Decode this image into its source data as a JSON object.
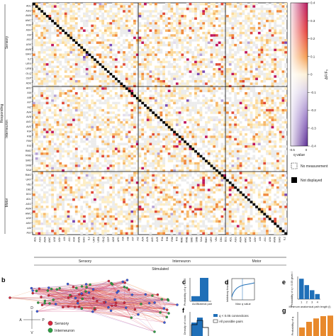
{
  "panels": {
    "a": {
      "type": "heatmap",
      "x_axis_title": "Stimulated",
      "y_axis_title": "Responding",
      "groups": [
        "Sensory",
        "Interneuron",
        "Motor"
      ],
      "row_labels_visible_sample": [
        "ADL",
        "ASG",
        "AWA",
        "AWC",
        "ASE",
        "ASH",
        "ASI",
        "ASJ",
        "ASK",
        "AWB",
        "BAG",
        "IL2",
        "URX",
        "URB",
        "OLQ",
        "CEP",
        "ADE",
        "AFD",
        "AIA",
        "AIB",
        "AIY",
        "AIZ",
        "AVA",
        "AVB",
        "AVD",
        "AVE",
        "RIA",
        "RIB",
        "RIM",
        "RIS",
        "RMD",
        "RME",
        "SMD",
        "SMB",
        "SAA",
        "RMG",
        "URY",
        "VB1",
        "DB1",
        "DD1"
      ],
      "colorbar": {
        "label": "ΔF/F₀",
        "ticks": [
          "0.4",
          "0.3",
          "0.2",
          "0.1",
          "0",
          "-0.1",
          "-0.2",
          "-0.3",
          "-0.4"
        ],
        "xticks": [
          "-0.5",
          "0"
        ],
        "xlabel": "q value"
      },
      "legend": {
        "no_measurement": "No measurement",
        "not_displayed": "Not displayed"
      }
    },
    "b": {
      "letter": "b",
      "orientation": {
        "d": "D",
        "v": "V",
        "a": "A",
        "p": "P"
      },
      "legend": [
        {
          "label": "Sensory",
          "color": "#d7263d"
        },
        {
          "label": "Interneuron",
          "color": "#2e9e44"
        }
      ]
    },
    "c": {
      "letter": "c",
      "type": "bar",
      "ylabel": "Probability of q < 0.05",
      "categories": [
        "Ad.",
        "Bilateral pair"
      ],
      "values": [
        0.12,
        0.55
      ]
    },
    "d": {
      "letter": "d",
      "type": "line",
      "ylabel": "Inhibitory fraction",
      "xlabel": "Max q value"
    },
    "e": {
      "letter": "e",
      "type": "bar",
      "ylabel": "Probability of q < 0.05 given l",
      "xlabel": "Minimum anatomical path length (l)",
      "categories": [
        "1",
        "2",
        "3",
        "4"
      ],
      "values": [
        0.32,
        0.22,
        0.14,
        0.08
      ]
    },
    "f": {
      "letter": "f",
      "type": "bar",
      "ylabel": "Density of conn.",
      "legend": [
        "q < 0.05 connections",
        "All possible pairs"
      ]
    },
    "g": {
      "letter": "g",
      "type": "bar",
      "ylabel": "Probability of q",
      "values": [
        0.3,
        0.5,
        0.62,
        0.7,
        0.72
      ]
    }
  },
  "colors": {
    "positive_low": "#fde8b0",
    "positive_mid": "#f08a3e",
    "positive_high": "#c0175c",
    "negative": "#7b4ab5",
    "no_measurement": "#ececec",
    "diagonal": "#000000",
    "bar": "#1f6fb8",
    "orange_bar": "#e8892c"
  }
}
